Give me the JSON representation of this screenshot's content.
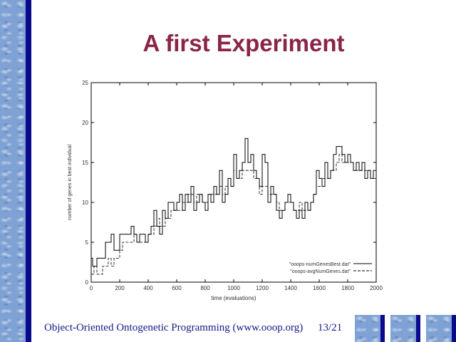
{
  "slide": {
    "title": "A first Experiment",
    "footer_left": "Object-Oriented Ontogenetic Programming (www.ooop.org)",
    "footer_page": "13/21"
  },
  "colors": {
    "title": "#8a2448",
    "footer_text": "#0e1a8a",
    "bar": "#0a0a8c",
    "water": "#7fa2d4"
  },
  "chart_data": {
    "type": "line",
    "xlabel": "time (evaluations)",
    "ylabel": "number of genes in best individual",
    "xlim": [
      0,
      2000
    ],
    "ylim": [
      0,
      25
    ],
    "x_ticks": [
      "0",
      "200",
      "400",
      "600",
      "800",
      "1000",
      "1200",
      "1400",
      "1600",
      "1800",
      "2000"
    ],
    "y_ticks": [
      "0",
      "5",
      "10",
      "15",
      "20",
      "25"
    ],
    "grid": false,
    "legend": {
      "placement": "bottom-right",
      "entries": [
        "\"ooops-numGenesBest.dat\"",
        "\"ooops-avgNumGenes.dat\""
      ]
    },
    "series": [
      {
        "name": "\"ooops-numGenesBest.dat\"",
        "style": "solid",
        "x": [
          0,
          10,
          20,
          40,
          60,
          80,
          100,
          120,
          140,
          160,
          180,
          200,
          220,
          240,
          260,
          280,
          300,
          320,
          340,
          360,
          380,
          400,
          420,
          440,
          460,
          480,
          500,
          520,
          540,
          560,
          580,
          600,
          620,
          640,
          660,
          680,
          700,
          720,
          740,
          760,
          780,
          800,
          820,
          840,
          860,
          880,
          900,
          920,
          940,
          960,
          980,
          1000,
          1020,
          1040,
          1060,
          1080,
          1100,
          1120,
          1140,
          1160,
          1180,
          1200,
          1220,
          1240,
          1260,
          1280,
          1300,
          1320,
          1340,
          1360,
          1380,
          1400,
          1420,
          1440,
          1460,
          1480,
          1500,
          1520,
          1540,
          1560,
          1580,
          1600,
          1620,
          1640,
          1660,
          1680,
          1700,
          1720,
          1740,
          1760,
          1780,
          1800,
          1820,
          1840,
          1860,
          1880,
          1900,
          1920,
          1940,
          1960,
          1980,
          2000
        ],
        "y": [
          3,
          2,
          2,
          3,
          3,
          3,
          5,
          5,
          6,
          4,
          4,
          6,
          6,
          6,
          6,
          7,
          6,
          5,
          6,
          6,
          5,
          6,
          7,
          9,
          7,
          6,
          9,
          8,
          10,
          10,
          9,
          10,
          11,
          9,
          11,
          10,
          12,
          9,
          10,
          11,
          10,
          9,
          11,
          10,
          12,
          11,
          14,
          10,
          11,
          13,
          12,
          16,
          13,
          14,
          15,
          18,
          15,
          16,
          14,
          13,
          12,
          16,
          15,
          10,
          12,
          11,
          9,
          8,
          9,
          10,
          11,
          10,
          9,
          8,
          9,
          8,
          10,
          9,
          10,
          11,
          14,
          13,
          12,
          15,
          13,
          14,
          16,
          17,
          17,
          16,
          15,
          16,
          15,
          14,
          15,
          14,
          15,
          13,
          14,
          13,
          14,
          12
        ]
      },
      {
        "name": "\"ooops-avgNumGenes.dat\"",
        "style": "dashed",
        "x": [
          0,
          20,
          40,
          60,
          80,
          100,
          120,
          140,
          160,
          180,
          200,
          220,
          240,
          260,
          280,
          300,
          320,
          340,
          360,
          380,
          400,
          420,
          440,
          460,
          480,
          500,
          520,
          540,
          560,
          580,
          600,
          620,
          640,
          660,
          680,
          700,
          720,
          740,
          760,
          780,
          800,
          820,
          840,
          860,
          880,
          900,
          920,
          940,
          960,
          980,
          1000,
          1020,
          1040,
          1060,
          1080,
          1100,
          1120,
          1140,
          1160,
          1180,
          1200,
          1220,
          1240,
          1260,
          1280,
          1300,
          1320,
          1340,
          1360,
          1380,
          1400,
          1420,
          1440,
          1460,
          1480,
          1500,
          1520,
          1540,
          1560,
          1580,
          1600,
          1620,
          1640,
          1660,
          1680,
          1700,
          1720,
          1740,
          1760,
          1780,
          1800,
          1820,
          1840,
          1860,
          1880,
          1900,
          1920,
          1940,
          1960,
          1980,
          2000
        ],
        "y": [
          1,
          2,
          1,
          1,
          2,
          2,
          3,
          2,
          3,
          3,
          4,
          5,
          5,
          5,
          5,
          6,
          5,
          5,
          5,
          5,
          6,
          6,
          7,
          8,
          7,
          7,
          8,
          8,
          9,
          9,
          9,
          9,
          10,
          10,
          11,
          11,
          10,
          11,
          11,
          10,
          10,
          11,
          11,
          11,
          11,
          12,
          11,
          12,
          13,
          12,
          14,
          13,
          13,
          14,
          14,
          14,
          14,
          13,
          13,
          11,
          12,
          12,
          11,
          11,
          11,
          10,
          9,
          9,
          10,
          10,
          10,
          9,
          9,
          10,
          9,
          9,
          9,
          10,
          11,
          12,
          12,
          13,
          13,
          13,
          14,
          14,
          15,
          16,
          15,
          15,
          15,
          15,
          14,
          14,
          14,
          14,
          14,
          14,
          13,
          13,
          13
        ]
      }
    ]
  }
}
